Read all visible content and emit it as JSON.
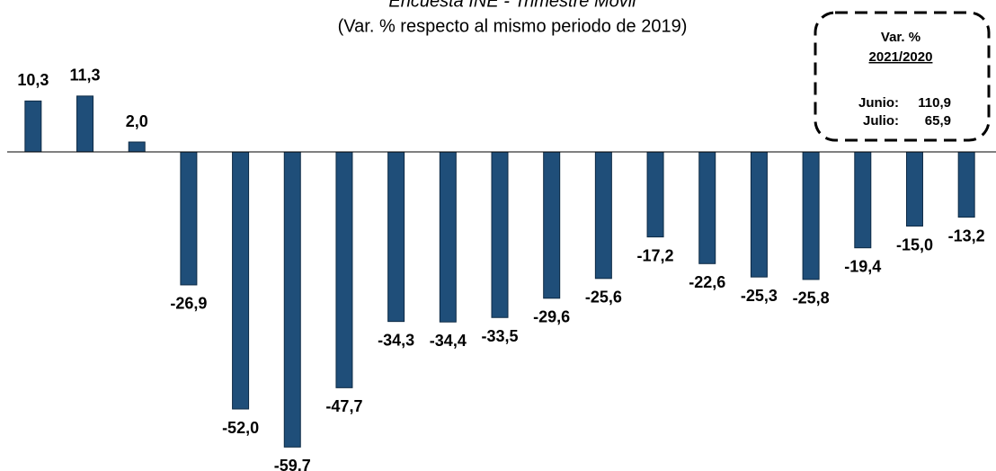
{
  "chart_data": {
    "type": "bar",
    "title": "Encuesta INE - Trimestre Móvil",
    "subtitle": "(Var. % respecto al mismo periodo de 2019)",
    "categories": [
      null,
      null,
      null,
      null,
      null,
      null,
      null,
      null,
      null,
      null,
      null,
      null,
      null,
      null,
      null,
      null,
      null,
      null,
      null
    ],
    "values": [
      10.3,
      11.3,
      2.0,
      -26.9,
      -52.0,
      -59.7,
      -47.7,
      -34.3,
      -34.4,
      -33.5,
      -29.6,
      -25.6,
      -17.2,
      -22.6,
      -25.3,
      -25.8,
      -19.4,
      -15.0,
      -13.2
    ],
    "value_labels": [
      "10,3",
      "11,3",
      "2,0",
      "-26,9",
      "-52,0",
      "-59,7",
      "-47,7",
      "-34,3",
      "-34,4",
      "-33,5",
      "-29,6",
      "-25,6",
      "-17,2",
      "-22,6",
      "-25,3",
      "-25,8",
      "-19,4",
      "-15,0",
      "-13,2"
    ],
    "color": "#1f4e79",
    "ylim": [
      -62,
      22
    ],
    "annotation": {
      "title": "Var. %",
      "subtitle": "2021/2020",
      "rows": [
        [
          "Junio:",
          "110,9"
        ],
        [
          "Julio:",
          "65,9"
        ]
      ]
    }
  }
}
